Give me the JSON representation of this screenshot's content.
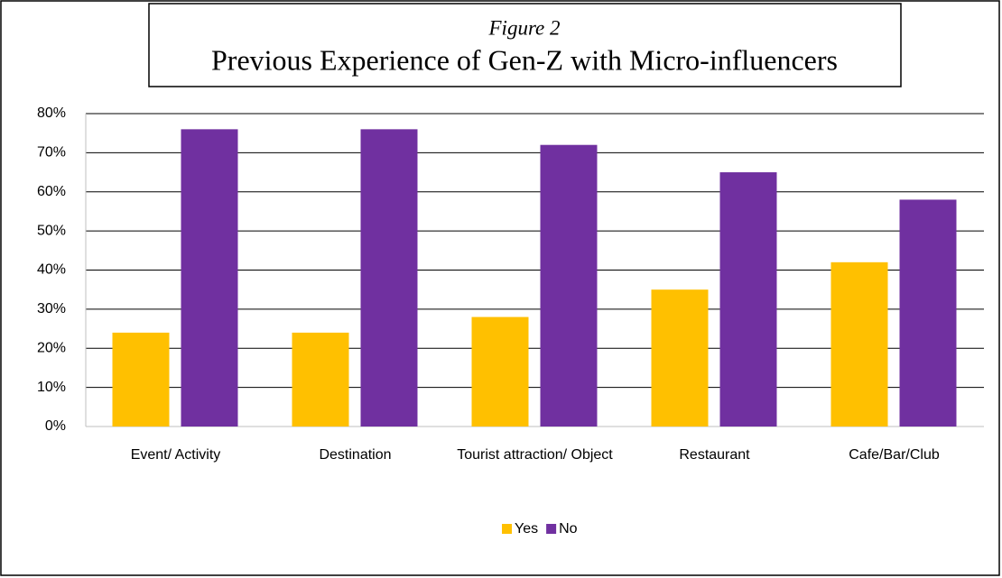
{
  "chart_data": {
    "type": "bar",
    "title": "Previous Experience of Gen-Z  with Micro-influencers",
    "subtitle": "Figure 2",
    "categories": [
      "Event/ Activity",
      "Destination",
      "Tourist attraction/ Object",
      "Restaurant",
      "Cafe/Bar/Club"
    ],
    "series": [
      {
        "name": "Yes",
        "color": "#ffc000",
        "values": [
          24,
          24,
          28,
          35,
          42
        ]
      },
      {
        "name": "No",
        "color": "#7030a0",
        "values": [
          76,
          76,
          72,
          65,
          58
        ]
      }
    ],
    "ylim": [
      0,
      80
    ],
    "yticks": [
      {
        "value": 0,
        "label": "0%"
      },
      {
        "value": 10,
        "label": "10%"
      },
      {
        "value": 20,
        "label": "20%"
      },
      {
        "value": 30,
        "label": "30%"
      },
      {
        "value": 40,
        "label": "40%"
      },
      {
        "value": 50,
        "label": "50%"
      },
      {
        "value": 60,
        "label": "60%"
      },
      {
        "value": 70,
        "label": "70%"
      },
      {
        "value": 80,
        "label": "80%"
      }
    ],
    "grid": true,
    "legend": "bottom"
  }
}
